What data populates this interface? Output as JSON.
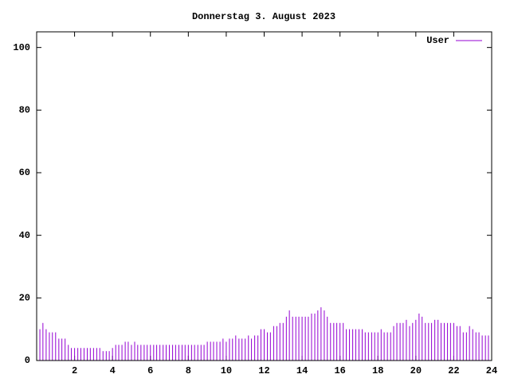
{
  "chart_data": {
    "type": "impulses",
    "title": "Donnerstag 3. August 2023",
    "x": [
      0,
      0.17,
      0.33,
      0.5,
      0.67,
      0.83,
      1,
      1.17,
      1.33,
      1.5,
      1.67,
      1.83,
      2,
      2.17,
      2.33,
      2.5,
      2.67,
      2.83,
      3,
      3.17,
      3.33,
      3.5,
      3.67,
      3.83,
      4,
      4.17,
      4.33,
      4.5,
      4.67,
      4.83,
      5,
      5.17,
      5.33,
      5.5,
      5.67,
      5.83,
      6,
      6.17,
      6.33,
      6.5,
      6.67,
      6.83,
      7,
      7.17,
      7.33,
      7.5,
      7.67,
      7.83,
      8,
      8.17,
      8.33,
      8.5,
      8.67,
      8.83,
      9,
      9.17,
      9.33,
      9.5,
      9.67,
      9.83,
      10,
      10.17,
      10.33,
      10.5,
      10.67,
      10.83,
      11,
      11.17,
      11.33,
      11.5,
      11.67,
      11.83,
      12,
      12.17,
      12.33,
      12.5,
      12.67,
      12.83,
      13,
      13.17,
      13.33,
      13.5,
      13.67,
      13.83,
      14,
      14.17,
      14.33,
      14.5,
      14.67,
      14.83,
      15,
      15.17,
      15.33,
      15.5,
      15.67,
      15.83,
      16,
      16.17,
      16.33,
      16.5,
      16.67,
      16.83,
      17,
      17.17,
      17.33,
      17.5,
      17.67,
      17.83,
      18,
      18.17,
      18.33,
      18.5,
      18.67,
      18.83,
      19,
      19.17,
      19.33,
      19.5,
      19.67,
      19.83,
      20,
      20.17,
      20.33,
      20.5,
      20.67,
      20.83,
      21,
      21.17,
      21.33,
      21.5,
      21.67,
      21.83,
      22,
      22.17,
      22.33,
      22.5,
      22.67,
      22.83,
      23,
      23.17,
      23.33,
      23.5,
      23.67,
      23.83
    ],
    "series": [
      {
        "name": "User",
        "color": "#9400d3",
        "values": [
          11,
          10,
          12,
          10,
          9,
          9,
          9,
          7,
          7,
          7,
          5,
          4,
          4,
          4,
          4,
          4,
          4,
          4,
          4,
          4,
          4,
          3,
          3,
          3,
          4,
          5,
          5,
          5,
          6,
          6,
          5,
          6,
          5,
          5,
          5,
          5,
          5,
          5,
          5,
          5,
          5,
          5,
          5,
          5,
          5,
          5,
          5,
          5,
          5,
          5,
          5,
          5,
          5,
          5,
          6,
          6,
          6,
          6,
          6,
          7,
          6,
          7,
          7,
          8,
          7,
          7,
          7,
          8,
          7,
          8,
          8,
          10,
          10,
          9,
          9,
          11,
          11,
          12,
          12,
          14,
          16,
          14,
          14,
          14,
          14,
          14,
          14,
          15,
          15,
          16,
          17,
          16,
          14,
          12,
          12,
          12,
          12,
          12,
          10,
          10,
          10,
          10,
          10,
          10,
          9,
          9,
          9,
          9,
          9,
          10,
          9,
          9,
          9,
          11,
          12,
          12,
          12,
          13,
          11,
          12,
          13,
          15,
          14,
          12,
          12,
          12,
          13,
          13,
          12,
          12,
          12,
          12,
          12,
          11,
          11,
          9,
          9,
          11,
          10,
          9,
          9,
          8,
          8,
          8
        ]
      }
    ],
    "xlim": [
      0,
      24
    ],
    "xticks": [
      2,
      4,
      6,
      8,
      10,
      12,
      14,
      16,
      18,
      20,
      22,
      24
    ],
    "ylim": [
      0,
      105
    ],
    "yticks": [
      0,
      20,
      40,
      60,
      80,
      100
    ]
  }
}
